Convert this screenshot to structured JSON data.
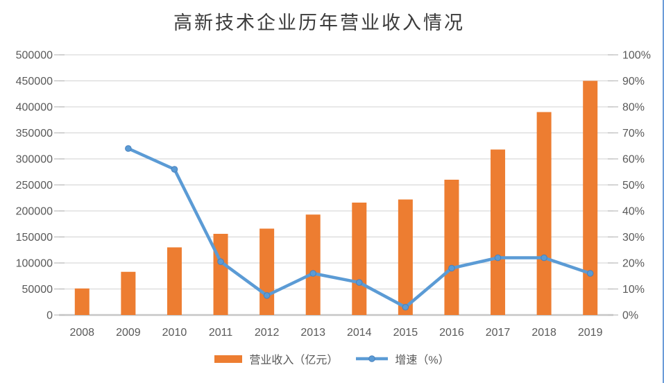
{
  "title": "高新技术企业历年营业收入情况",
  "colors": {
    "bar": "#ED7D31",
    "line": "#5B9BD5",
    "marker": "#5B9BD5",
    "marker_edge": "#4981BD",
    "grid": "#D9D9D9",
    "axis": "#C6C6C6",
    "tick": "#BFBFBF",
    "text": "#595959",
    "title_text": "#3B3B3B",
    "edge_line": "#6A9BD8"
  },
  "chart_data": {
    "type": "bar+line combo (dual axis)",
    "title": "高新技术企业历年营业收入情况",
    "categories": [
      "2008",
      "2009",
      "2010",
      "2011",
      "2012",
      "2013",
      "2014",
      "2015",
      "2016",
      "2017",
      "2018",
      "2019"
    ],
    "series": [
      {
        "name": "营业收入（亿元）",
        "type": "bar",
        "axis": "left",
        "color": "#ED7D31",
        "values": [
          51000,
          83000,
          130000,
          156000,
          166000,
          193000,
          216000,
          222000,
          260000,
          318000,
          390000,
          450000
        ]
      },
      {
        "name": "增速（%）",
        "type": "line",
        "axis": "right",
        "color": "#5B9BD5",
        "values": [
          null,
          64,
          56,
          20.5,
          7.5,
          16,
          12.5,
          3,
          18,
          22,
          22,
          16
        ]
      }
    ],
    "left_axis": {
      "min": 0,
      "max": 500000,
      "step": 50000,
      "tick_labels": [
        "0",
        "50000",
        "100000",
        "150000",
        "200000",
        "250000",
        "300000",
        "350000",
        "400000",
        "450000",
        "500000"
      ]
    },
    "right_axis": {
      "min": 0,
      "max": 100,
      "step": 10,
      "format": "percent",
      "tick_labels": [
        "0%",
        "10%",
        "20%",
        "30%",
        "40%",
        "50%",
        "60%",
        "70%",
        "80%",
        "90%",
        "100%"
      ]
    },
    "grid": true,
    "legend_position": "bottom"
  }
}
